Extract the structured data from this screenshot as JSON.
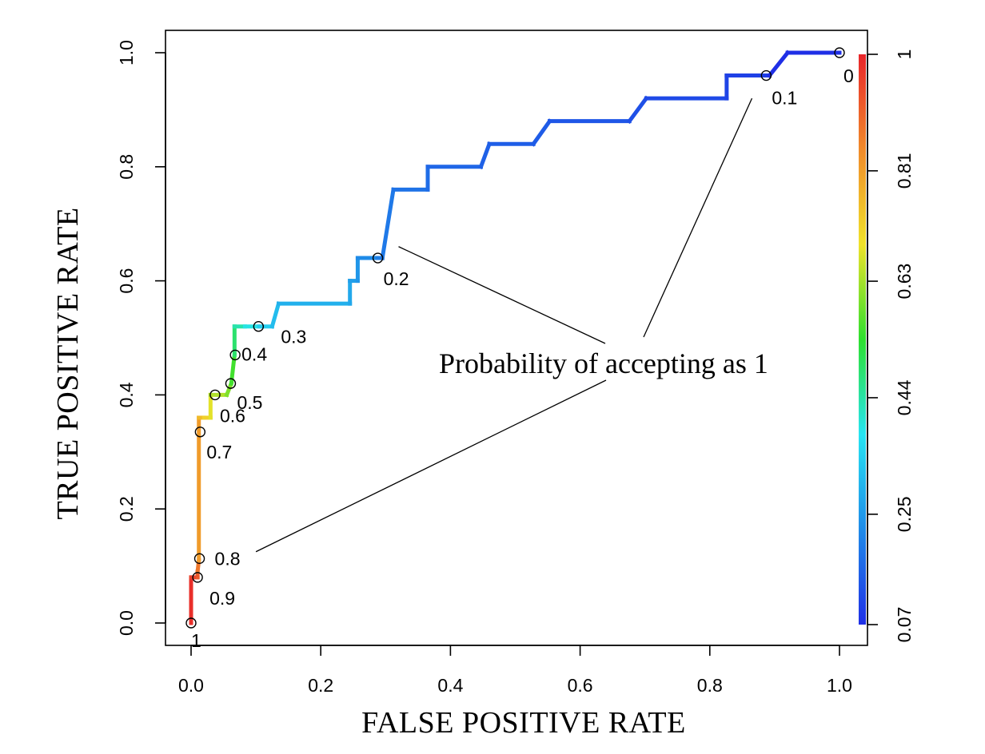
{
  "chart_data": {
    "type": "line",
    "title": "",
    "xlabel": "FALSE POSITIVE RATE",
    "ylabel": "TRUE POSITIVE RATE",
    "xlim": [
      0,
      1
    ],
    "ylim": [
      0,
      1
    ],
    "x_ticks": [
      "0.0",
      "0.2",
      "0.4",
      "0.6",
      "0.8",
      "1.0"
    ],
    "y_ticks": [
      "0.0",
      "0.2",
      "0.4",
      "0.6",
      "0.8",
      "1.0"
    ],
    "grid": false,
    "series": [
      {
        "x": [
          0,
          0,
          0.01,
          0.01,
          0.012,
          0.012,
          0.02,
          0.03,
          0.03,
          0.055,
          0.062,
          0.067,
          0.067,
          0.083,
          0.105,
          0.125,
          0.135,
          0.245,
          0.245,
          0.257,
          0.257,
          0.288,
          0.295,
          0.312,
          0.365,
          0.365,
          0.447,
          0.46,
          0.528,
          0.553,
          0.676,
          0.702,
          0.826,
          0.826,
          0.887,
          0.892,
          0.92,
          1.0
        ],
        "y": [
          0,
          0.08,
          0.08,
          0.09,
          0.11,
          0.36,
          0.36,
          0.36,
          0.4,
          0.4,
          0.42,
          0.47,
          0.52,
          0.52,
          0.52,
          0.52,
          0.56,
          0.56,
          0.6,
          0.6,
          0.64,
          0.64,
          0.64,
          0.76,
          0.76,
          0.8,
          0.8,
          0.84,
          0.84,
          0.88,
          0.88,
          0.92,
          0.92,
          0.96,
          0.96,
          0.96,
          1.0,
          1.0
        ],
        "cutoff": [
          1.0,
          0.97,
          0.94,
          0.9,
          0.85,
          0.78,
          0.74,
          0.7,
          0.66,
          0.62,
          0.58,
          0.52,
          0.45,
          0.42,
          0.36,
          0.32,
          0.3,
          0.28,
          0.27,
          0.25,
          0.24,
          0.21,
          0.2,
          0.19,
          0.18,
          0.17,
          0.16,
          0.15,
          0.15,
          0.14,
          0.13,
          0.12,
          0.11,
          0.1,
          0.1,
          0.09,
          0.05,
          0.0
        ]
      }
    ],
    "cutoff_points": [
      {
        "x": 0.0,
        "y": 0.0,
        "label": "1"
      },
      {
        "x": 0.01,
        "y": 0.08,
        "label": "0.9"
      },
      {
        "x": 0.013,
        "y": 0.113,
        "label": "0.8"
      },
      {
        "x": 0.014,
        "y": 0.335,
        "label": "0.7"
      },
      {
        "x": 0.037,
        "y": 0.4,
        "label": "0.6"
      },
      {
        "x": 0.061,
        "y": 0.42,
        "label": "0.5"
      },
      {
        "x": 0.068,
        "y": 0.47,
        "label": "0.4"
      },
      {
        "x": 0.104,
        "y": 0.52,
        "label": "0.3"
      },
      {
        "x": 0.288,
        "y": 0.64,
        "label": "0.2"
      },
      {
        "x": 0.887,
        "y": 0.96,
        "label": "0.1"
      },
      {
        "x": 1.0,
        "y": 1.0,
        "label": "0"
      }
    ],
    "colorbar": {
      "labels": [
        "0.07",
        "0.25",
        "0.44",
        "0.63",
        "0.81",
        "1"
      ],
      "values": [
        0.07,
        0.25,
        0.44,
        0.63,
        0.81,
        1.0
      ],
      "range": [
        0.07,
        1.0
      ],
      "colors": [
        "#1f2fe6",
        "#1f8be8",
        "#27e4f2",
        "#2ee02e",
        "#f0e22a",
        "#f08a2a",
        "#e8252a"
      ]
    },
    "annotation": {
      "text": "Probability of accepting as 1",
      "pointer_targets": [
        {
          "x": 0.32,
          "y": 0.66
        },
        {
          "x": 0.865,
          "y": 0.92
        },
        {
          "x": 0.1,
          "y": 0.125
        }
      ]
    }
  }
}
